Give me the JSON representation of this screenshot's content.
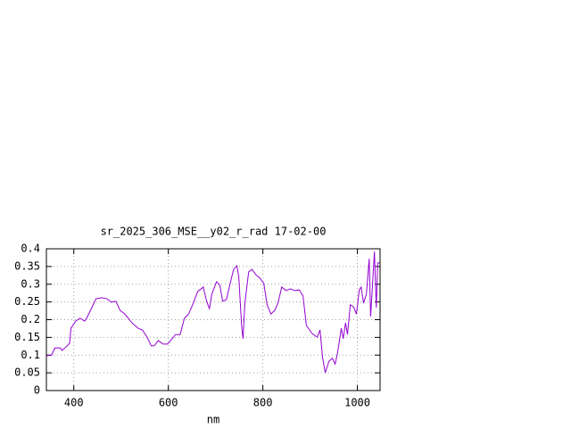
{
  "chart_data": {
    "type": "line",
    "title": "sr_2025_306_MSE__y02_r_rad 17-02-00",
    "x_label": "nm",
    "x": [
      342,
      353,
      360,
      372,
      375,
      385,
      391,
      394,
      404,
      413,
      423,
      428,
      438,
      447,
      460,
      470,
      479,
      489,
      498,
      508,
      523,
      536,
      545,
      555,
      564,
      570,
      579,
      589,
      598,
      608,
      615,
      625,
      634,
      643,
      653,
      662,
      674,
      681,
      687,
      692,
      702,
      709,
      715,
      723,
      730,
      738,
      745,
      749,
      755,
      758,
      762,
      770,
      777,
      785,
      794,
      802,
      809,
      817,
      825,
      832,
      840,
      849,
      858,
      868,
      877,
      885,
      892,
      904,
      915,
      921,
      926,
      932,
      940,
      947,
      953,
      958,
      966,
      970,
      975,
      979,
      985,
      992,
      998,
      1004,
      1008,
      1013,
      1019,
      1025,
      1028,
      1032,
      1036,
      1040,
      1043,
      1047
    ],
    "series": [
      {
        "color": "#9400d3",
        "values": [
          0.098,
          0.1,
          0.12,
          0.12,
          0.113,
          0.125,
          0.133,
          0.176,
          0.196,
          0.204,
          0.196,
          0.206,
          0.234,
          0.259,
          0.262,
          0.259,
          0.249,
          0.252,
          0.226,
          0.216,
          0.191,
          0.176,
          0.171,
          0.151,
          0.126,
          0.126,
          0.141,
          0.131,
          0.131,
          0.146,
          0.158,
          0.158,
          0.204,
          0.216,
          0.247,
          0.279,
          0.292,
          0.252,
          0.231,
          0.272,
          0.307,
          0.297,
          0.252,
          0.257,
          0.297,
          0.342,
          0.352,
          0.322,
          0.184,
          0.146,
          0.247,
          0.335,
          0.342,
          0.327,
          0.317,
          0.302,
          0.242,
          0.216,
          0.226,
          0.247,
          0.292,
          0.282,
          0.287,
          0.282,
          0.284,
          0.267,
          0.184,
          0.161,
          0.151,
          0.171,
          0.096,
          0.05,
          0.083,
          0.091,
          0.075,
          0.106,
          0.176,
          0.146,
          0.191,
          0.158,
          0.242,
          0.236,
          0.216,
          0.284,
          0.292,
          0.247,
          0.272,
          0.372,
          0.209,
          0.297,
          0.392,
          0.234,
          0.36,
          0.36
        ]
      }
    ],
    "xlim": [
      342,
      1048
    ],
    "xticks": [
      400,
      600,
      800,
      1000
    ],
    "ylim": [
      0,
      0.4
    ],
    "yticks": [
      0,
      0.05,
      0.1,
      0.15,
      0.2,
      0.25,
      0.3,
      0.35,
      0.4
    ],
    "grid": true
  }
}
